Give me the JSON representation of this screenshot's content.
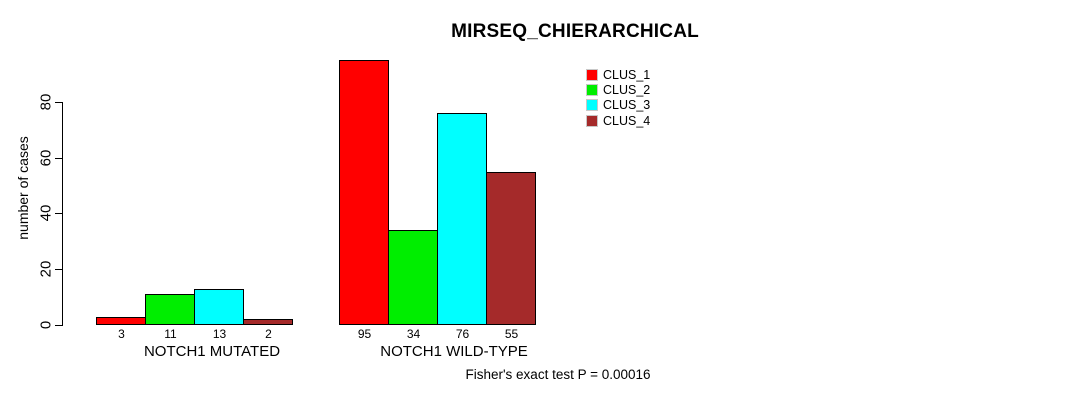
{
  "chart_data": {
    "type": "bar",
    "title": "MIRSEQ_CHIERARCHICAL",
    "ylabel": "number of cases",
    "xlabel": "",
    "categories": [
      "NOTCH1 MUTATED",
      "NOTCH1 WILD-TYPE"
    ],
    "series": [
      {
        "name": "CLUS_1",
        "color": "#ff0000",
        "values": [
          3,
          95
        ]
      },
      {
        "name": "CLUS_2",
        "color": "#00ee00",
        "values": [
          11,
          34
        ]
      },
      {
        "name": "CLUS_3",
        "color": "#00ffff",
        "values": [
          13,
          76
        ]
      },
      {
        "name": "CLUS_4",
        "color": "#a52a2a",
        "values": [
          2,
          55
        ]
      }
    ],
    "bar_value_labels": [
      [
        3,
        11,
        13,
        2
      ],
      [
        95,
        34,
        76,
        55
      ]
    ],
    "yticks": [
      0,
      20,
      40,
      60,
      80
    ],
    "ylim": [
      0,
      96
    ],
    "grid": false,
    "legend_position": "top-right",
    "annotation": "Fisher's exact test P = 0.00016"
  }
}
